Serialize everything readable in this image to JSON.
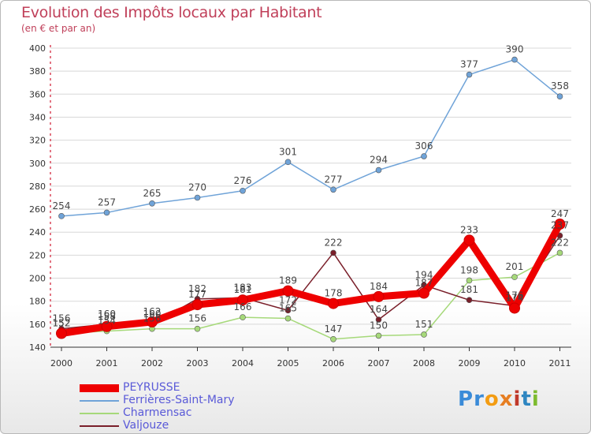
{
  "header": {
    "title": "Evolution des Impôts locaux par Habitant",
    "subtitle": "(en € et par an)"
  },
  "brand": {
    "letters": [
      "P",
      "r",
      "o",
      "x",
      "i",
      "t",
      "i"
    ],
    "colors": [
      "#3a8bd8",
      "#3a8bd8",
      "#f39c12",
      "#f39c12",
      "#c0392b",
      "#2e86c1",
      "#7dbb2f"
    ]
  },
  "chart_data": {
    "type": "line",
    "title": "Evolution des Impôts locaux par Habitant",
    "subtitle": "(en € et par an)",
    "xlabel": "",
    "ylabel": "",
    "ylim": [
      140,
      400
    ],
    "yticks": [
      140,
      160,
      180,
      200,
      220,
      240,
      260,
      280,
      300,
      320,
      340,
      360,
      380,
      400
    ],
    "categories": [
      "2000",
      "2001",
      "2002",
      "2003",
      "2004",
      "2005",
      "2006",
      "2007",
      "2008",
      "2009",
      "2010",
      "2011"
    ],
    "series": [
      {
        "name": "PEYRUSSE",
        "color": "#ee0000",
        "values": [
          152,
          158,
          162,
          177,
          181,
          189,
          178,
          184,
          187,
          233,
          174,
          247
        ]
      },
      {
        "name": "Ferrières-Saint-Mary",
        "color": "#6fa3d8",
        "values": [
          254,
          257,
          265,
          270,
          276,
          301,
          277,
          294,
          306,
          377,
          390,
          358
        ]
      },
      {
        "name": "Charmensac",
        "color": "#a6d97a",
        "values": [
          152,
          154,
          156,
          156,
          166,
          165,
          147,
          150,
          151,
          198,
          201,
          222
        ]
      },
      {
        "name": "Valjouze",
        "color": "#7a1f2a",
        "values": [
          156,
          160,
          160,
          182,
          183,
          172,
          222,
          164,
          194,
          181,
          176,
          237
        ]
      }
    ],
    "legend_position": "bottom-left"
  }
}
